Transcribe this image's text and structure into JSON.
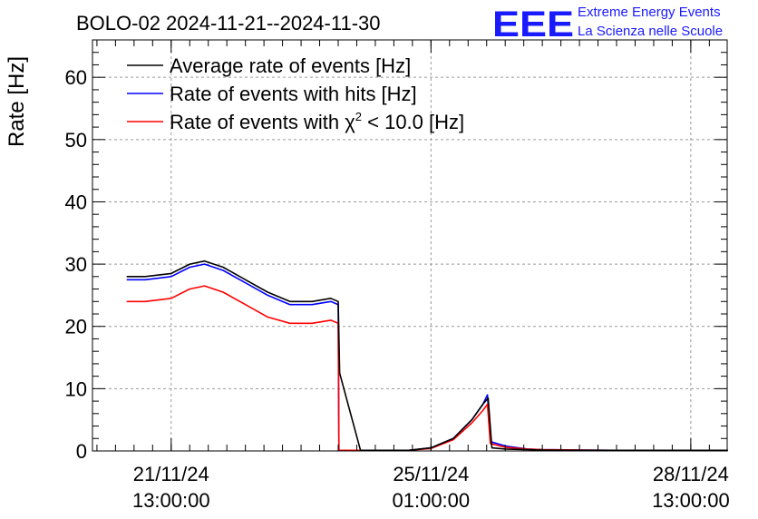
{
  "chart_data": {
    "type": "line",
    "title": "BOLO-02 2024-11-21--2024-11-30",
    "ylabel": "Rate [Hz]",
    "xlabel": "",
    "ylim": [
      0,
      66
    ],
    "yticks": [
      0,
      10,
      20,
      30,
      40,
      50,
      60
    ],
    "xlim_days": [
      -1.06,
      7.49
    ],
    "x_ticks": [
      {
        "day": 0,
        "line1": "21/11/24",
        "line2": "13:00:00"
      },
      {
        "day": 3.5,
        "line1": "25/11/24",
        "line2": "01:00:00"
      },
      {
        "day": 7,
        "line1": "28/11/24",
        "line2": "13:00:00"
      }
    ],
    "grid": true,
    "legend": {
      "position": "top-left",
      "entries": [
        {
          "label": "Average rate of events [Hz]",
          "color": "#000000"
        },
        {
          "label": "Rate of events with hits [Hz]",
          "color": "#0000ff"
        },
        {
          "label_prefix": "Rate of events with ",
          "label_chi": "χ",
          "label_sup": "2",
          "label_suffix": " < 10.0 [Hz]",
          "color": "#ff0000"
        }
      ]
    },
    "x_unit_note": "x values in days relative to 21/11/24 13:00:00",
    "series": [
      {
        "name": "Rate of events with hits [Hz]",
        "color": "#0000ff",
        "x": [
          -0.6,
          -0.35,
          0.0,
          0.25,
          0.45,
          0.7,
          1.0,
          1.3,
          1.6,
          1.9,
          2.15,
          2.25,
          2.26,
          3.2,
          3.5,
          3.8,
          4.05,
          4.2,
          4.26,
          4.3,
          4.5,
          4.8,
          5.0,
          5.5,
          6.0,
          6.5,
          7.0,
          7.5
        ],
        "y": [
          27.5,
          27.5,
          28.0,
          29.5,
          30.0,
          29.0,
          27.0,
          25.0,
          23.5,
          23.5,
          24.0,
          23.5,
          0.1,
          0.1,
          0.5,
          2.0,
          5.0,
          7.5,
          9.0,
          1.5,
          0.8,
          0.3,
          0.2,
          0.15,
          0.1,
          0.1,
          0.1,
          0.1
        ]
      },
      {
        "name": "Rate of events with χ2 < 10.0 [Hz]",
        "color": "#ff0000",
        "x": [
          -0.6,
          -0.35,
          0.0,
          0.25,
          0.45,
          0.7,
          1.0,
          1.3,
          1.6,
          1.9,
          2.15,
          2.25,
          2.26,
          3.2,
          3.5,
          3.8,
          4.05,
          4.2,
          4.26,
          4.3,
          4.5,
          4.8,
          5.0,
          5.5,
          6.0,
          6.5,
          7.0,
          7.5
        ],
        "y": [
          24.0,
          24.0,
          24.5,
          26.0,
          26.5,
          25.5,
          23.5,
          21.5,
          20.5,
          20.5,
          21.0,
          20.5,
          0.1,
          0.1,
          0.4,
          1.8,
          4.5,
          6.5,
          7.5,
          1.2,
          0.6,
          0.3,
          0.2,
          0.15,
          0.1,
          0.1,
          0.1,
          0.1
        ]
      },
      {
        "name": "Average rate of events [Hz]",
        "color": "#000000",
        "x": [
          -0.6,
          -0.35,
          0.0,
          0.25,
          0.45,
          0.7,
          1.0,
          1.3,
          1.6,
          1.9,
          2.15,
          2.25,
          2.27,
          2.55,
          3.2,
          3.5,
          3.8,
          4.05,
          4.2,
          4.27,
          4.32,
          4.5,
          4.8,
          5.0,
          5.5,
          6.0,
          6.5,
          7.0,
          7.5
        ],
        "y": [
          28.0,
          28.0,
          28.5,
          30.0,
          30.5,
          29.5,
          27.5,
          25.5,
          24.0,
          24.0,
          24.5,
          24.0,
          12.5,
          0.1,
          0.1,
          0.5,
          2.0,
          5.0,
          7.5,
          8.5,
          0.5,
          0.3,
          0.2,
          0.15,
          0.1,
          0.1,
          0.1,
          0.1,
          0.1
        ]
      }
    ]
  },
  "logo": {
    "letters": "EEE",
    "line1": "Extreme Energy Events",
    "line2": "La Scienza nelle Scuole"
  }
}
